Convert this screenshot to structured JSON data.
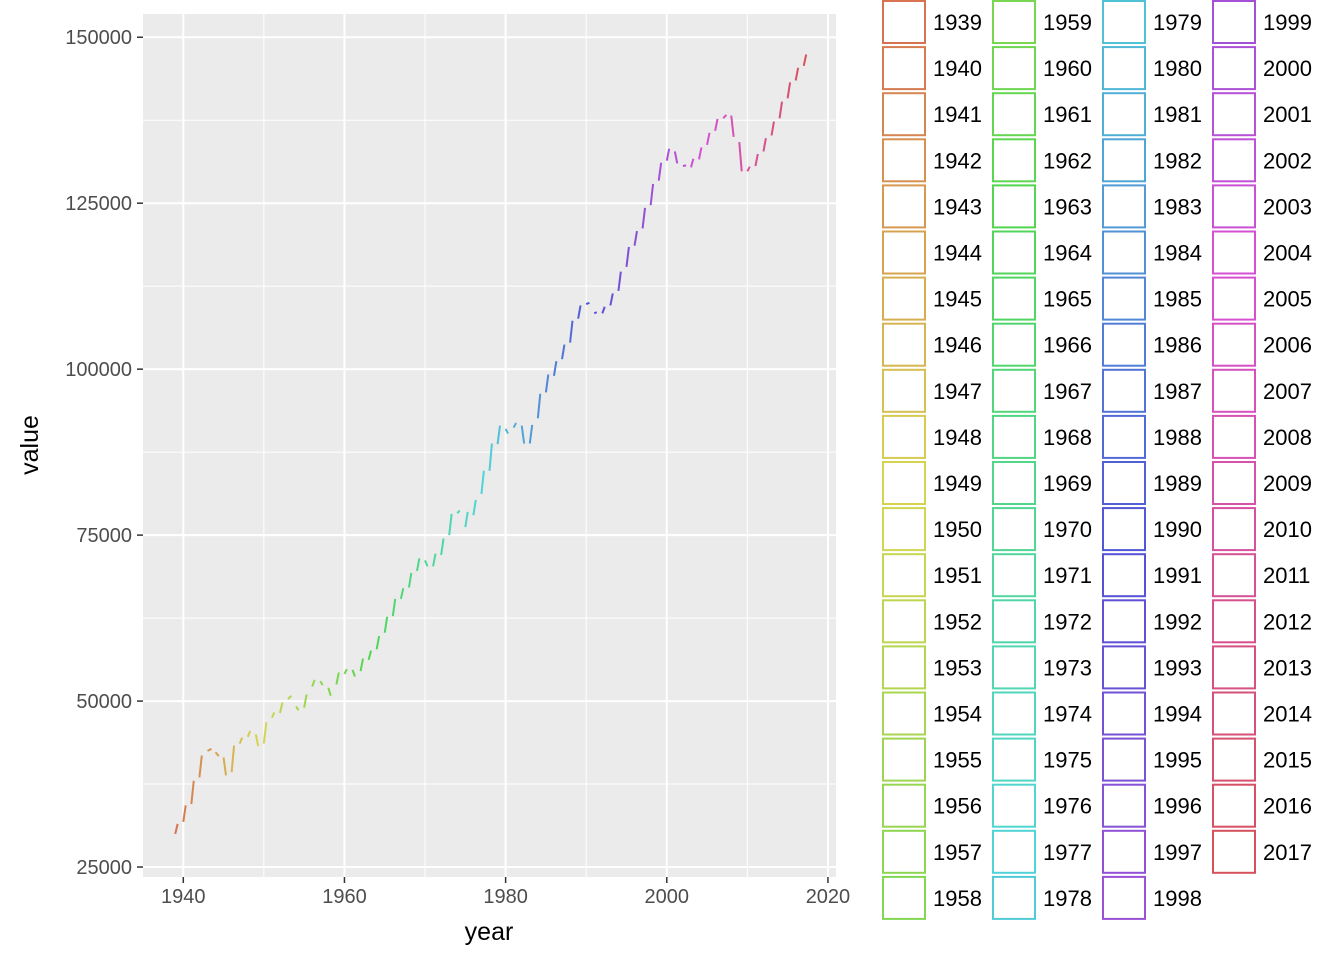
{
  "chart_data": {
    "type": "line",
    "xlabel": "year",
    "ylabel": "value",
    "xlim": [
      1935,
      2021
    ],
    "ylim": [
      23500,
      153500
    ],
    "x_ticks": [
      1940,
      1960,
      1980,
      2000,
      2020
    ],
    "x_tick_labels": [
      "1940",
      "1960",
      "1980",
      "2000",
      "2020"
    ],
    "y_ticks": [
      25000,
      50000,
      75000,
      100000,
      125000,
      150000
    ],
    "y_tick_labels": [
      "25000",
      "50000",
      "75000",
      "100000",
      "125000",
      "150000"
    ],
    "grid": true,
    "legend_position": "right",
    "color_palette_note": "hue gradient from first to last year",
    "series": [
      {
        "name": "1939",
        "x": [
          1939.0,
          1939.3
        ],
        "y": [
          30000,
          31500
        ]
      },
      {
        "name": "1940",
        "x": [
          1940.0,
          1940.3
        ],
        "y": [
          31800,
          34300
        ]
      },
      {
        "name": "1941",
        "x": [
          1941.0,
          1941.3
        ],
        "y": [
          34500,
          38000
        ]
      },
      {
        "name": "1942",
        "x": [
          1942.0,
          1942.3
        ],
        "y": [
          38500,
          41800
        ]
      },
      {
        "name": "1943",
        "x": [
          1943.0,
          1943.5
        ],
        "y": [
          42500,
          42800
        ]
      },
      {
        "name": "1944",
        "x": [
          1944.0,
          1944.4
        ],
        "y": [
          42300,
          41700
        ]
      },
      {
        "name": "1945",
        "x": [
          1945.0,
          1945.3
        ],
        "y": [
          41500,
          38800
        ]
      },
      {
        "name": "1946",
        "x": [
          1946.0,
          1946.3
        ],
        "y": [
          39300,
          43300
        ]
      },
      {
        "name": "1947",
        "x": [
          1947.0,
          1947.3
        ],
        "y": [
          43600,
          44500
        ]
      },
      {
        "name": "1948",
        "x": [
          1948.0,
          1948.3
        ],
        "y": [
          44600,
          45500
        ]
      },
      {
        "name": "1949",
        "x": [
          1949.0,
          1949.3
        ],
        "y": [
          45000,
          43200
        ]
      },
      {
        "name": "1950",
        "x": [
          1950.0,
          1950.3
        ],
        "y": [
          43600,
          46800
        ]
      },
      {
        "name": "1951",
        "x": [
          1951.0,
          1951.3
        ],
        "y": [
          47500,
          48300
        ]
      },
      {
        "name": "1952",
        "x": [
          1952.0,
          1952.3
        ],
        "y": [
          48200,
          49800
        ]
      },
      {
        "name": "1953",
        "x": [
          1953.0,
          1953.4
        ],
        "y": [
          50300,
          50800
        ]
      },
      {
        "name": "1954",
        "x": [
          1954.0,
          1954.3
        ],
        "y": [
          49200,
          48600
        ]
      },
      {
        "name": "1955",
        "x": [
          1955.0,
          1955.3
        ],
        "y": [
          49000,
          51000
        ]
      },
      {
        "name": "1956",
        "x": [
          1956.0,
          1956.3
        ],
        "y": [
          52200,
          53200
        ]
      },
      {
        "name": "1957",
        "x": [
          1957.0,
          1957.3
        ],
        "y": [
          53000,
          52400
        ]
      },
      {
        "name": "1958",
        "x": [
          1958.0,
          1958.3
        ],
        "y": [
          52000,
          50800
        ]
      },
      {
        "name": "1959",
        "x": [
          1959.0,
          1959.3
        ],
        "y": [
          52500,
          54300
        ]
      },
      {
        "name": "1960",
        "x": [
          1960.0,
          1960.3
        ],
        "y": [
          54100,
          54800
        ]
      },
      {
        "name": "1961",
        "x": [
          1961.0,
          1961.3
        ],
        "y": [
          54700,
          53700
        ]
      },
      {
        "name": "1962",
        "x": [
          1962.0,
          1962.3
        ],
        "y": [
          54500,
          56400
        ]
      },
      {
        "name": "1963",
        "x": [
          1963.0,
          1963.3
        ],
        "y": [
          56200,
          57600
        ]
      },
      {
        "name": "1964",
        "x": [
          1964.0,
          1964.3
        ],
        "y": [
          57800,
          59800
        ]
      },
      {
        "name": "1965",
        "x": [
          1965.0,
          1965.3
        ],
        "y": [
          60300,
          62700
        ]
      },
      {
        "name": "1966",
        "x": [
          1966.0,
          1966.3
        ],
        "y": [
          62800,
          65400
        ]
      },
      {
        "name": "1967",
        "x": [
          1967.0,
          1967.3
        ],
        "y": [
          65400,
          67000
        ]
      },
      {
        "name": "1968",
        "x": [
          1968.0,
          1968.3
        ],
        "y": [
          67100,
          69300
        ]
      },
      {
        "name": "1969",
        "x": [
          1969.0,
          1969.3
        ],
        "y": [
          69600,
          71500
        ]
      },
      {
        "name": "1970",
        "x": [
          1970.0,
          1970.3
        ],
        "y": [
          71200,
          70300
        ]
      },
      {
        "name": "1971",
        "x": [
          1971.0,
          1971.3
        ],
        "y": [
          70300,
          72200
        ]
      },
      {
        "name": "1972",
        "x": [
          1972.0,
          1972.3
        ],
        "y": [
          72000,
          74500
        ]
      },
      {
        "name": "1973",
        "x": [
          1973.0,
          1973.3
        ],
        "y": [
          75000,
          78200
        ]
      },
      {
        "name": "1974",
        "x": [
          1974.0,
          1974.3
        ],
        "y": [
          78300,
          78700
        ]
      },
      {
        "name": "1975",
        "x": [
          1975.0,
          1975.3
        ],
        "y": [
          76200,
          78500
        ]
      },
      {
        "name": "1976",
        "x": [
          1976.0,
          1976.3
        ],
        "y": [
          78000,
          80300
        ]
      },
      {
        "name": "1977",
        "x": [
          1977.0,
          1977.3
        ],
        "y": [
          81200,
          84700
        ]
      },
      {
        "name": "1978",
        "x": [
          1978.0,
          1978.3
        ],
        "y": [
          84700,
          88800
        ]
      },
      {
        "name": "1979",
        "x": [
          1979.0,
          1979.3
        ],
        "y": [
          88700,
          91500
        ]
      },
      {
        "name": "1980",
        "x": [
          1980.0,
          1980.3
        ],
        "y": [
          91000,
          90300
        ]
      },
      {
        "name": "1981",
        "x": [
          1981.0,
          1981.3
        ],
        "y": [
          91200,
          91900
        ]
      },
      {
        "name": "1982",
        "x": [
          1982.0,
          1982.3
        ],
        "y": [
          91500,
          88800
        ]
      },
      {
        "name": "1983",
        "x": [
          1983.0,
          1983.3
        ],
        "y": [
          88800,
          91600
        ]
      },
      {
        "name": "1984",
        "x": [
          1984.0,
          1984.3
        ],
        "y": [
          92600,
          96300
        ]
      },
      {
        "name": "1985",
        "x": [
          1985.0,
          1985.3
        ],
        "y": [
          96500,
          99200
        ]
      },
      {
        "name": "1986",
        "x": [
          1986.0,
          1986.3
        ],
        "y": [
          99000,
          101200
        ]
      },
      {
        "name": "1987",
        "x": [
          1987.0,
          1987.3
        ],
        "y": [
          101500,
          103700
        ]
      },
      {
        "name": "1988",
        "x": [
          1988.0,
          1988.3
        ],
        "y": [
          104000,
          107300
        ]
      },
      {
        "name": "1989",
        "x": [
          1989.0,
          1989.3
        ],
        "y": [
          107600,
          109600
        ]
      },
      {
        "name": "1990",
        "x": [
          1990.0,
          1990.4
        ],
        "y": [
          109800,
          110000
        ]
      },
      {
        "name": "1991",
        "x": [
          1991.0,
          1991.3
        ],
        "y": [
          108400,
          108600
        ]
      },
      {
        "name": "1992",
        "x": [
          1992.0,
          1992.3
        ],
        "y": [
          108400,
          109400
        ]
      },
      {
        "name": "1993",
        "x": [
          1993.0,
          1993.3
        ],
        "y": [
          109600,
          111400
        ]
      },
      {
        "name": "1994",
        "x": [
          1994.0,
          1994.3
        ],
        "y": [
          111800,
          114700
        ]
      },
      {
        "name": "1995",
        "x": [
          1995.0,
          1995.3
        ],
        "y": [
          115400,
          118400
        ]
      },
      {
        "name": "1996",
        "x": [
          1996.0,
          1996.3
        ],
        "y": [
          118600,
          120800
        ]
      },
      {
        "name": "1997",
        "x": [
          1997.0,
          1997.3
        ],
        "y": [
          121200,
          124300
        ]
      },
      {
        "name": "1998",
        "x": [
          1998.0,
          1998.3
        ],
        "y": [
          124700,
          127900
        ]
      },
      {
        "name": "1999",
        "x": [
          1999.0,
          1999.3
        ],
        "y": [
          128400,
          131100
        ]
      },
      {
        "name": "2000",
        "x": [
          2000.0,
          2000.3
        ],
        "y": [
          131400,
          133200
        ]
      },
      {
        "name": "2001",
        "x": [
          2001.0,
          2001.3
        ],
        "y": [
          132800,
          131000
        ]
      },
      {
        "name": "2002",
        "x": [
          2002.0,
          2002.4
        ],
        "y": [
          130600,
          130700
        ]
      },
      {
        "name": "2003",
        "x": [
          2003.0,
          2003.3
        ],
        "y": [
          130400,
          131700
        ]
      },
      {
        "name": "2004",
        "x": [
          2004.0,
          2004.3
        ],
        "y": [
          131600,
          133400
        ]
      },
      {
        "name": "2005",
        "x": [
          2005.0,
          2005.3
        ],
        "y": [
          133800,
          135600
        ]
      },
      {
        "name": "2006",
        "x": [
          2006.0,
          2006.3
        ],
        "y": [
          135900,
          137700
        ]
      },
      {
        "name": "2007",
        "x": [
          2007.0,
          2007.4
        ],
        "y": [
          137800,
          138300
        ]
      },
      {
        "name": "2008",
        "x": [
          2008.0,
          2008.3
        ],
        "y": [
          138200,
          135000
        ]
      },
      {
        "name": "2009",
        "x": [
          2009.0,
          2009.3
        ],
        "y": [
          134200,
          129800
        ]
      },
      {
        "name": "2010",
        "x": [
          2010.0,
          2010.3
        ],
        "y": [
          129800,
          130500
        ]
      },
      {
        "name": "2011",
        "x": [
          2011.0,
          2011.3
        ],
        "y": [
          130600,
          132400
        ]
      },
      {
        "name": "2012",
        "x": [
          2012.0,
          2012.3
        ],
        "y": [
          132800,
          134800
        ]
      },
      {
        "name": "2013",
        "x": [
          2013.0,
          2013.3
        ],
        "y": [
          135200,
          137300
        ]
      },
      {
        "name": "2014",
        "x": [
          2014.0,
          2014.3
        ],
        "y": [
          137800,
          140300
        ]
      },
      {
        "name": "2015",
        "x": [
          2015.0,
          2015.3
        ],
        "y": [
          140800,
          143200
        ]
      },
      {
        "name": "2016",
        "x": [
          2016.0,
          2016.3
        ],
        "y": [
          143500,
          145400
        ]
      },
      {
        "name": "2017",
        "x": [
          2017.0,
          2017.3
        ],
        "y": [
          145700,
          147400
        ]
      }
    ]
  }
}
